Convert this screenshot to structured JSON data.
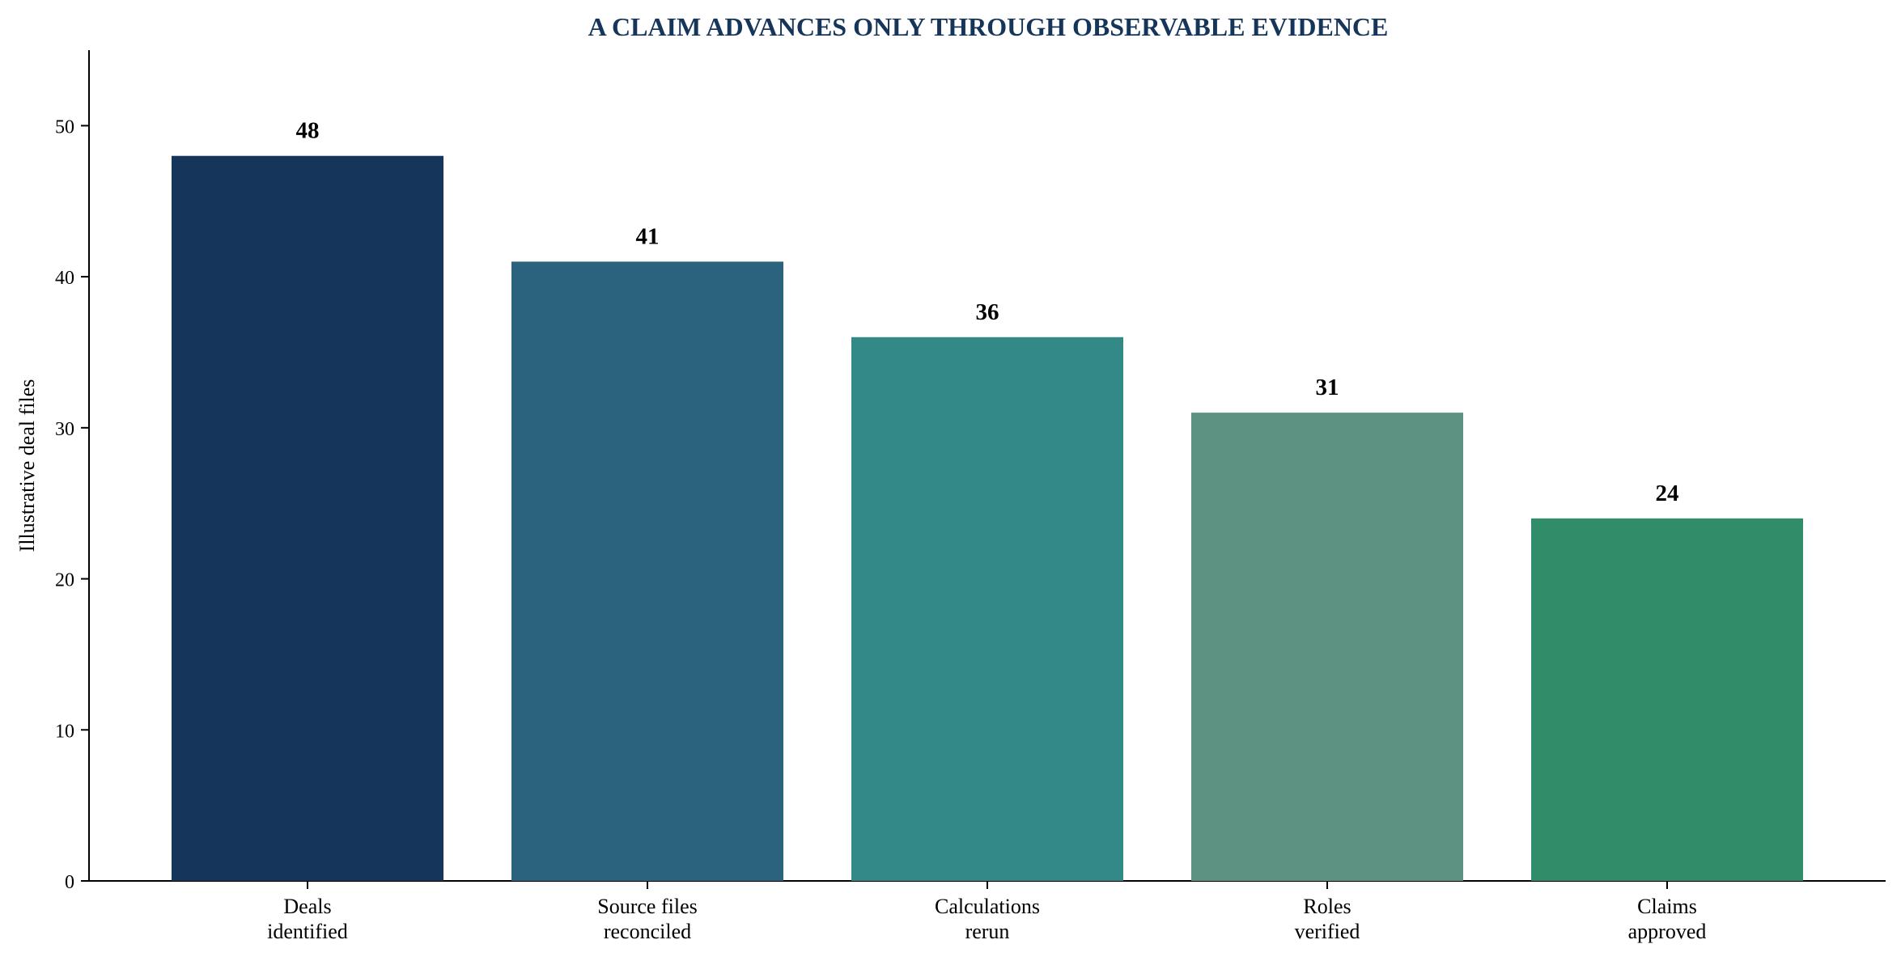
{
  "chart_data": {
    "type": "bar",
    "title": "A CLAIM ADVANCES ONLY THROUGH OBSERVABLE EVIDENCE",
    "xlabel": "",
    "ylabel": "Illustrative deal files",
    "ylim": [
      0,
      55
    ],
    "yticks": [
      0,
      10,
      20,
      30,
      40,
      50
    ],
    "categories": [
      [
        "Deals",
        "identified"
      ],
      [
        "Source files",
        "reconciled"
      ],
      [
        "Calculations",
        "rerun"
      ],
      [
        "Roles",
        "verified"
      ],
      [
        "Claims",
        "approved"
      ]
    ],
    "values": [
      48,
      41,
      36,
      31,
      24
    ],
    "value_labels": [
      "48",
      "41",
      "36",
      "31",
      "24"
    ],
    "colors": [
      "#15355a",
      "#2b627e",
      "#328985",
      "#5d9182",
      "#308c69"
    ],
    "title_color": "#15355a",
    "grid": false,
    "legend": "none"
  }
}
